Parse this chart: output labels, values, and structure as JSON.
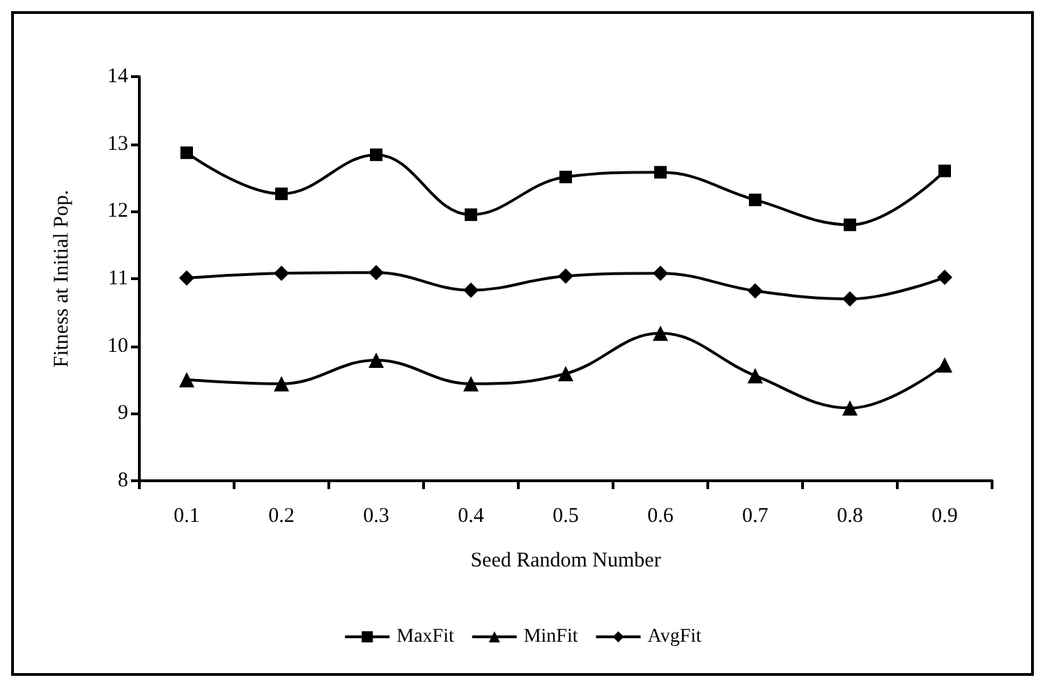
{
  "chart_data": {
    "type": "line",
    "xlabel": "Seed Random Number",
    "ylabel": "Fitness at Initial Pop.",
    "categories": [
      "0.1",
      "0.2",
      "0.3",
      "0.4",
      "0.5",
      "0.6",
      "0.7",
      "0.8",
      "0.9"
    ],
    "series": [
      {
        "name": "MaxFit",
        "color": "#000000",
        "marker": "square",
        "values": [
          12.87,
          12.26,
          12.84,
          11.95,
          12.51,
          12.58,
          12.17,
          11.8,
          12.6
        ]
      },
      {
        "name": "MinFit",
        "color": "#000000",
        "marker": "triangle",
        "values": [
          9.5,
          9.44,
          9.79,
          9.44,
          9.59,
          10.19,
          9.56,
          9.08,
          9.72
        ]
      },
      {
        "name": "AvgFit",
        "color": "#000000",
        "marker": "diamond",
        "values": [
          11.01,
          11.08,
          11.09,
          10.83,
          11.04,
          11.08,
          10.82,
          10.7,
          11.02
        ]
      }
    ],
    "ylim": [
      8,
      14
    ],
    "yticks": [
      8,
      9,
      10,
      11,
      12,
      13,
      14
    ],
    "grid": false,
    "legend": "bottom",
    "line_style": "solid"
  }
}
